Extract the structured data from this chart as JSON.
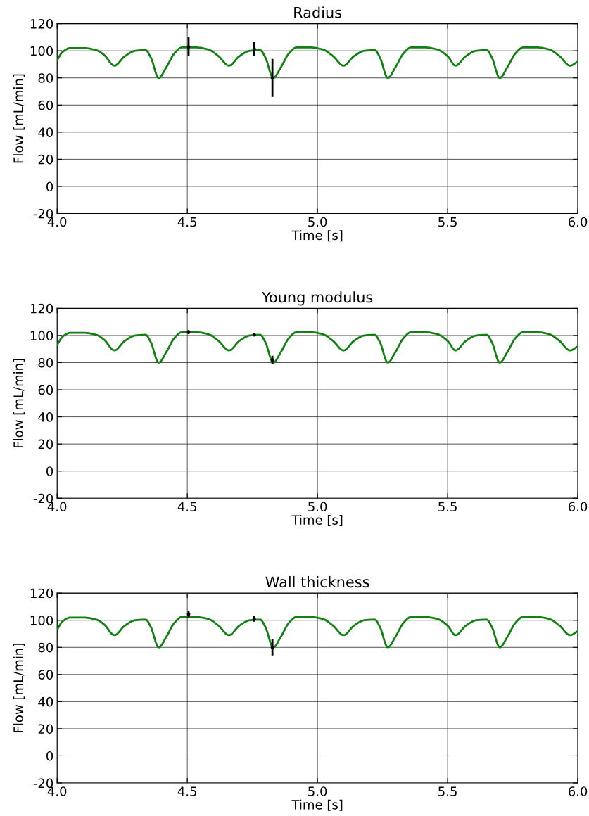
{
  "chart_data": [
    {
      "type": "line",
      "title": "Radius",
      "xlabel": "Time [s]",
      "ylabel": "Flow [mL/min]",
      "xlim": [
        4.0,
        6.0
      ],
      "xticks": [
        {
          "value": 4.0,
          "label": "4.0"
        },
        {
          "value": 4.5,
          "label": "4.5"
        },
        {
          "value": 5.0,
          "label": "5.0"
        },
        {
          "value": 5.5,
          "label": "5.5"
        },
        {
          "value": 6.0,
          "label": "6.0"
        }
      ],
      "ylim": [
        -20,
        120
      ],
      "yticks": [
        -20,
        0,
        20,
        40,
        60,
        80,
        100,
        120
      ],
      "grid": true,
      "series": [
        {
          "type": "line",
          "color": "#138013",
          "x": [
            4.0,
            4.02,
            4.05,
            4.1,
            4.15,
            4.18,
            4.22,
            4.26,
            4.3,
            4.34,
            4.36,
            4.39,
            4.42,
            4.45,
            4.48,
            4.53,
            4.58,
            4.62,
            4.66,
            4.7,
            4.74,
            4.78,
            4.8,
            4.83,
            4.86,
            4.89,
            4.92,
            4.97,
            5.02,
            5.06,
            5.1,
            5.14,
            5.18,
            5.22,
            5.24,
            5.27,
            5.3,
            5.33,
            5.36,
            5.41,
            5.46,
            5.5,
            5.53,
            5.57,
            5.61,
            5.65,
            5.67,
            5.7,
            5.73,
            5.76,
            5.79,
            5.84,
            5.89,
            5.93,
            5.97,
            6.0
          ],
          "values": [
            93,
            99,
            102,
            102,
            100.5,
            97,
            89,
            96,
            100,
            100.5,
            95,
            80,
            88,
            98,
            102.5,
            102.5,
            101,
            96,
            89,
            96,
            100,
            100.5,
            95,
            80,
            88,
            98,
            102.5,
            102.5,
            101,
            96,
            89,
            96,
            100,
            100.5,
            95,
            80,
            88,
            98,
            102.5,
            102.5,
            101,
            96,
            89,
            96,
            100,
            100.5,
            95,
            80,
            88,
            98,
            102.5,
            102.5,
            101,
            96,
            89,
            92
          ]
        },
        {
          "type": "scatter",
          "marker": "circle",
          "color": "#000000",
          "x": [
            4.505,
            4.757,
            4.827
          ],
          "values": [
            103,
            101.5,
            80
          ],
          "errors": [
            7,
            5,
            14
          ]
        }
      ]
    },
    {
      "type": "line",
      "title": "Young modulus",
      "xlabel": "Time [s]",
      "ylabel": "Flow [mL/min]",
      "xlim": [
        4.0,
        6.0
      ],
      "xticks": [
        {
          "value": 4.0,
          "label": "4.0"
        },
        {
          "value": 4.5,
          "label": "4.5"
        },
        {
          "value": 5.0,
          "label": "5.0"
        },
        {
          "value": 5.5,
          "label": "5.5"
        },
        {
          "value": 6.0,
          "label": "6.0"
        }
      ],
      "ylim": [
        -20,
        120
      ],
      "yticks": [
        -20,
        0,
        20,
        40,
        60,
        80,
        100,
        120
      ],
      "grid": true,
      "series": [
        {
          "type": "line",
          "color": "#138013",
          "x": [
            4.0,
            4.02,
            4.05,
            4.1,
            4.15,
            4.18,
            4.22,
            4.26,
            4.3,
            4.34,
            4.36,
            4.39,
            4.42,
            4.45,
            4.48,
            4.53,
            4.58,
            4.62,
            4.66,
            4.7,
            4.74,
            4.78,
            4.8,
            4.83,
            4.86,
            4.89,
            4.92,
            4.97,
            5.02,
            5.06,
            5.1,
            5.14,
            5.18,
            5.22,
            5.24,
            5.27,
            5.3,
            5.33,
            5.36,
            5.41,
            5.46,
            5.5,
            5.53,
            5.57,
            5.61,
            5.65,
            5.67,
            5.7,
            5.73,
            5.76,
            5.79,
            5.84,
            5.89,
            5.93,
            5.97,
            6.0
          ],
          "values": [
            93,
            99,
            102,
            102,
            100.5,
            97,
            89,
            96,
            100,
            100.5,
            95,
            80,
            88,
            98,
            102.5,
            102.5,
            101,
            96,
            89,
            96,
            100,
            100.5,
            95,
            80,
            88,
            98,
            102.5,
            102.5,
            101,
            96,
            89,
            96,
            100,
            100.5,
            95,
            80,
            88,
            98,
            102.5,
            102.5,
            101,
            96,
            89,
            96,
            100,
            100.5,
            95,
            80,
            88,
            98,
            102.5,
            102.5,
            101,
            96,
            89,
            92
          ]
        },
        {
          "type": "scatter",
          "marker": "circle",
          "color": "#000000",
          "x": [
            4.505,
            4.757,
            4.827
          ],
          "values": [
            102.5,
            100.5,
            82
          ],
          "errors": [
            1.5,
            1,
            3
          ]
        }
      ]
    },
    {
      "type": "line",
      "title": "Wall thickness",
      "xlabel": "Time [s]",
      "ylabel": "Flow [mL/min]",
      "xlim": [
        4.0,
        6.0
      ],
      "xticks": [
        {
          "value": 4.0,
          "label": "4.0"
        },
        {
          "value": 4.5,
          "label": "4.5"
        },
        {
          "value": 5.0,
          "label": "5.0"
        },
        {
          "value": 5.5,
          "label": "5.5"
        },
        {
          "value": 6.0,
          "label": "6.0"
        }
      ],
      "ylim": [
        -20,
        120
      ],
      "yticks": [
        -20,
        0,
        20,
        40,
        60,
        80,
        100,
        120
      ],
      "grid": true,
      "series": [
        {
          "type": "line",
          "color": "#138013",
          "x": [
            4.0,
            4.02,
            4.05,
            4.1,
            4.15,
            4.18,
            4.22,
            4.26,
            4.3,
            4.34,
            4.36,
            4.39,
            4.42,
            4.45,
            4.48,
            4.53,
            4.58,
            4.62,
            4.66,
            4.7,
            4.74,
            4.78,
            4.8,
            4.83,
            4.86,
            4.89,
            4.92,
            4.97,
            5.02,
            5.06,
            5.1,
            5.14,
            5.18,
            5.22,
            5.24,
            5.27,
            5.3,
            5.33,
            5.36,
            5.41,
            5.46,
            5.5,
            5.53,
            5.57,
            5.61,
            5.65,
            5.67,
            5.7,
            5.73,
            5.76,
            5.79,
            5.84,
            5.89,
            5.93,
            5.97,
            6.0
          ],
          "values": [
            93,
            99,
            102,
            102,
            100.5,
            97,
            89,
            96,
            100,
            100.5,
            95,
            80,
            88,
            98,
            102.5,
            102.5,
            101,
            96,
            89,
            96,
            100,
            100.5,
            95,
            80,
            88,
            98,
            102.5,
            102.5,
            101,
            96,
            89,
            96,
            100,
            100.5,
            95,
            80,
            88,
            98,
            102.5,
            102.5,
            101,
            96,
            89,
            96,
            100,
            100.5,
            95,
            80,
            88,
            98,
            102.5,
            102.5,
            101,
            96,
            89,
            92
          ]
        },
        {
          "type": "scatter",
          "marker": "circle",
          "color": "#000000",
          "x": [
            4.505,
            4.757,
            4.827
          ],
          "values": [
            104.5,
            101,
            80
          ],
          "errors": [
            2.5,
            2,
            6
          ]
        }
      ]
    }
  ]
}
